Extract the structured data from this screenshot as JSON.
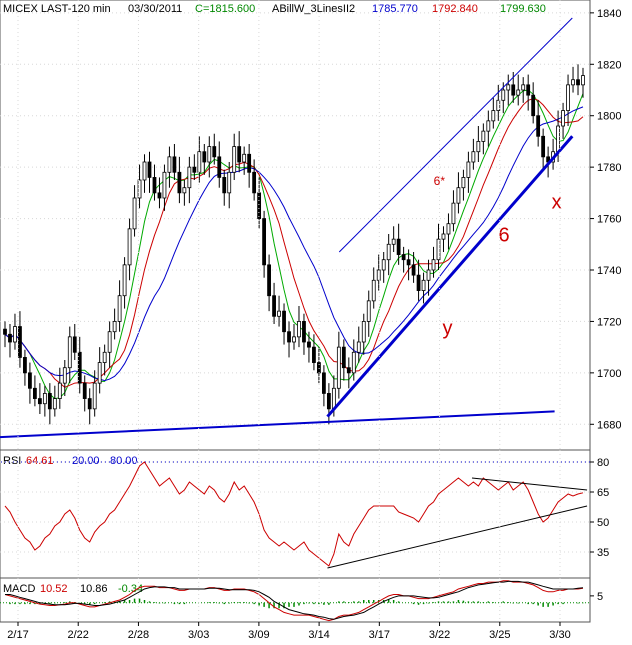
{
  "chart_data": [
    {
      "type": "candlestick",
      "header": {
        "symbol": "MICEX LAST-120 min",
        "date": "03/30/2011",
        "close_label": "C=1815.600",
        "indicator": "ABillW_3LinesII2",
        "ind_values": [
          "1785.770",
          "1792.840",
          "1799.630"
        ],
        "ind_colors": [
          "#0000cc",
          "#cc0000",
          "#008800"
        ]
      },
      "ylim": [
        1670,
        1845
      ],
      "y_ticks": [
        1680,
        1700,
        1720,
        1740,
        1760,
        1780,
        1800,
        1820,
        1840
      ],
      "x_ticks": [
        "2/17",
        "2/22",
        "2/28",
        "3/03",
        "3/09",
        "3/14",
        "3/17",
        "3/22",
        "3/25",
        "3/30"
      ],
      "annotations": [
        {
          "text": "6*",
          "x": 0.735,
          "y": 1773,
          "color": "#cc0000"
        },
        {
          "text": "6",
          "x": 0.845,
          "y": 1751,
          "color": "#cc0000"
        },
        {
          "text": "x",
          "x": 0.935,
          "y": 1764,
          "color": "#cc0000"
        },
        {
          "text": "y",
          "x": 0.75,
          "y": 1715,
          "color": "#cc0000"
        }
      ],
      "closes": [
        1715,
        1712,
        1718,
        1706,
        1700,
        1694,
        1690,
        1688,
        1692,
        1686,
        1690,
        1696,
        1702,
        1714,
        1708,
        1696,
        1690,
        1686,
        1696,
        1704,
        1708,
        1716,
        1720,
        1730,
        1742,
        1756,
        1768,
        1775,
        1782,
        1776,
        1770,
        1768,
        1778,
        1784,
        1778,
        1770,
        1772,
        1780,
        1778,
        1786,
        1782,
        1788,
        1784,
        1776,
        1770,
        1778,
        1788,
        1782,
        1785,
        1778,
        1770,
        1760,
        1742,
        1730,
        1722,
        1724,
        1716,
        1712,
        1714,
        1720,
        1712,
        1710,
        1704,
        1700,
        1692,
        1686,
        1694,
        1710,
        1702,
        1700,
        1708,
        1712,
        1720,
        1728,
        1736,
        1740,
        1744,
        1750,
        1752,
        1746,
        1744,
        1742,
        1738,
        1732,
        1736,
        1740,
        1744,
        1752,
        1754,
        1758,
        1766,
        1772,
        1776,
        1782,
        1786,
        1790,
        1794,
        1798,
        1802,
        1806,
        1810,
        1812,
        1808,
        1810,
        1812,
        1808,
        1800,
        1792,
        1784,
        1782,
        1786,
        1796,
        1802,
        1812,
        1814,
        1812,
        1815.6
      ],
      "lines": [
        {
          "name": "channel_upper",
          "from": [
            0.575,
            1747
          ],
          "to": [
            0.97,
            1838
          ],
          "color": "#0000cc",
          "width": 1
        },
        {
          "name": "support_main",
          "from": [
            0.555,
            1683
          ],
          "to": [
            0.97,
            1792
          ],
          "color": "#0000cc",
          "width": 3
        },
        {
          "name": "support_base",
          "from": [
            0.0,
            1675
          ],
          "to": [
            0.94,
            1685
          ],
          "color": "#0000cc",
          "width": 2
        }
      ]
    },
    {
      "type": "line",
      "title": "RSI",
      "values_text": [
        "64.61",
        "20.00",
        "80.00"
      ],
      "value_colors": [
        "#cc0000",
        "#0000cc",
        "#0000cc"
      ],
      "ylim": [
        22,
        86
      ],
      "y_ticks": [
        35,
        50,
        65,
        80
      ],
      "levels": [
        80,
        20
      ],
      "trendlines": [
        {
          "from": [
            0.555,
            27
          ],
          "to": [
            0.995,
            58
          ]
        },
        {
          "from": [
            0.8,
            72
          ],
          "to": [
            0.995,
            66
          ]
        }
      ],
      "series": [
        {
          "values": [
            58,
            55,
            50,
            46,
            42,
            40,
            36,
            38,
            42,
            44,
            48,
            50,
            54,
            56,
            52,
            46,
            42,
            40,
            45,
            48,
            50,
            54,
            56,
            60,
            64,
            68,
            73,
            78,
            80,
            76,
            72,
            68,
            70,
            72,
            68,
            64,
            66,
            70,
            68,
            66,
            64,
            68,
            66,
            62,
            60,
            64,
            70,
            66,
            68,
            64,
            60,
            54,
            46,
            42,
            40,
            38,
            40,
            38,
            36,
            38,
            40,
            36,
            34,
            32,
            30,
            28,
            34,
            44,
            40,
            38,
            44,
            48,
            52,
            56,
            58,
            58,
            58,
            58,
            58,
            55,
            54,
            53,
            52,
            50,
            54,
            58,
            60,
            64,
            66,
            68,
            70,
            72,
            70,
            68,
            70,
            68,
            72,
            70,
            68,
            66,
            68,
            70,
            66,
            68,
            70,
            66,
            60,
            54,
            50,
            52,
            56,
            60,
            62,
            64,
            63,
            64,
            64.61
          ]
        }
      ]
    },
    {
      "type": "line",
      "title": "MACD",
      "values_text": [
        "10.52",
        "10.86",
        "-0.34"
      ],
      "value_colors": [
        "#cc0000",
        "#000000",
        "#008800"
      ],
      "ylim": [
        -14,
        18
      ],
      "y_ticks": [
        5
      ],
      "series": [
        {
          "values": [
            6,
            5,
            4,
            3,
            2,
            1,
            0,
            -1,
            -1.5,
            -2,
            -2,
            -1.5,
            -1,
            0,
            0,
            -1,
            -2,
            -3,
            -3,
            -2,
            -1,
            0,
            1,
            2,
            4,
            6,
            9,
            11,
            12,
            12,
            12,
            11,
            11,
            11,
            10,
            9,
            9,
            10,
            10,
            10,
            10,
            11,
            11,
            10,
            9,
            9,
            10,
            10,
            10,
            9,
            8,
            6,
            3,
            0,
            -3,
            -5,
            -7,
            -8,
            -9,
            -9,
            -9,
            -9,
            -10,
            -11,
            -12,
            -13,
            -12,
            -10,
            -9,
            -9,
            -8,
            -7,
            -5,
            -3,
            -1,
            1,
            3,
            5,
            6,
            6,
            5,
            5,
            4,
            3,
            3,
            3,
            4,
            5,
            6,
            7,
            8,
            10,
            11,
            12,
            13,
            14,
            14,
            15,
            15,
            15,
            16,
            16,
            15,
            15,
            15,
            14,
            13,
            11,
            9,
            8,
            8,
            9,
            9,
            10,
            10,
            10,
            10.52
          ]
        },
        {
          "values": [
            6,
            6,
            5,
            4,
            3,
            2,
            1,
            0,
            -0.5,
            -1,
            -1.5,
            -1.5,
            -1.5,
            -1,
            -0.5,
            -0.5,
            -1,
            -1.5,
            -2,
            -2,
            -1.5,
            -1,
            0,
            1,
            2,
            4,
            6,
            8,
            10,
            11,
            11.5,
            11.5,
            11.5,
            11,
            11,
            10,
            10,
            10,
            10,
            10,
            10,
            10.5,
            10.5,
            10.5,
            10,
            9.5,
            9.5,
            9.5,
            9.5,
            9.5,
            9,
            8,
            6,
            4,
            1,
            -1,
            -3,
            -5,
            -6,
            -7,
            -8,
            -8.5,
            -9,
            -10,
            -10.5,
            -11.5,
            -12,
            -11,
            -10,
            -9.5,
            -9,
            -8,
            -7,
            -5,
            -3,
            -1,
            1,
            2.5,
            4,
            5,
            5,
            5,
            5,
            4.5,
            4,
            3.5,
            3.5,
            4,
            5,
            6,
            7,
            8,
            9.5,
            11,
            12,
            13,
            13.5,
            14,
            14.5,
            15,
            15,
            15.5,
            15.5,
            15.5,
            15,
            15,
            14,
            13,
            12,
            11,
            10,
            10,
            10,
            10,
            10,
            10.5,
            10.86
          ]
        }
      ]
    }
  ]
}
